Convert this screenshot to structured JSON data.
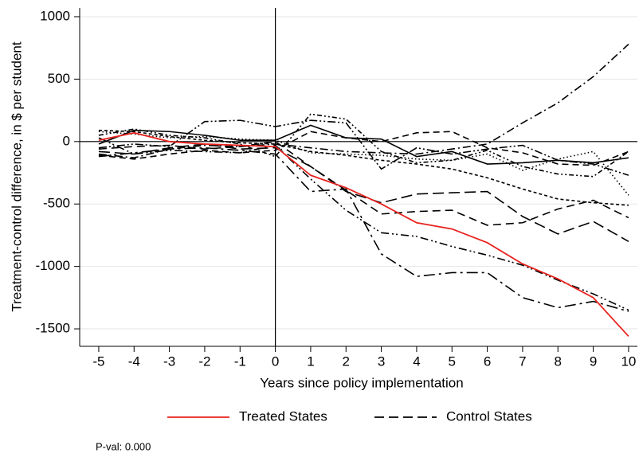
{
  "chart_data": {
    "type": "line",
    "xlabel": "Years since policy implementation",
    "ylabel": "Treatment-control difference, in $ per student",
    "annotation": "P-val: 0.000",
    "x": [
      -5,
      -4,
      -3,
      -2,
      -1,
      0,
      1,
      2,
      3,
      4,
      5,
      6,
      7,
      8,
      9,
      10
    ],
    "xlim": [
      -5.54,
      10.25
    ],
    "ylim": [
      -1640,
      1070
    ],
    "xticks": [
      -5,
      -4,
      -3,
      -2,
      -1,
      0,
      1,
      2,
      3,
      4,
      5,
      6,
      7,
      8,
      9,
      10
    ],
    "yticks": [
      -1500,
      -1000,
      -500,
      0,
      500,
      1000
    ],
    "grid": true,
    "reference_x": 0,
    "reference_y": 0,
    "series": [
      {
        "name": "Treated States",
        "color": "#e8231e",
        "values": [
          10,
          70,
          0,
          -20,
          -30,
          -40,
          -270,
          -370,
          -500,
          -650,
          -700,
          -810,
          -980,
          -1100,
          -1250,
          -1560
        ]
      },
      {
        "name": "Control States",
        "color": "#000000",
        "lines": [
          [
            -100,
            -130,
            -60,
            -30,
            -40,
            -20,
            -50,
            -80,
            -90,
            -100,
            -60,
            -20,
            150,
            310,
            520,
            780
          ],
          [
            -120,
            -90,
            -60,
            -50,
            -70,
            -100,
            -400,
            -380,
            -900,
            -1080,
            -1050,
            -1050,
            -1250,
            -1330,
            -1280,
            -1360
          ],
          [
            30,
            -100,
            -70,
            -80,
            -90,
            -30,
            -300,
            -550,
            -730,
            -760,
            -840,
            -910,
            -990,
            -1110,
            -1220,
            -1350
          ],
          [
            -60,
            -40,
            -30,
            -60,
            -40,
            0,
            -200,
            -390,
            -580,
            -560,
            -550,
            -670,
            -650,
            -540,
            -470,
            -610
          ],
          [
            -80,
            -100,
            -50,
            -20,
            -60,
            -50,
            -200,
            -400,
            -490,
            -420,
            -410,
            -400,
            -600,
            -740,
            -640,
            -800
          ],
          [
            90,
            80,
            40,
            10,
            -10,
            -20,
            -80,
            -110,
            -150,
            -180,
            -220,
            -290,
            -380,
            -460,
            -490,
            -510
          ],
          [
            80,
            60,
            30,
            40,
            20,
            10,
            -90,
            -100,
            -110,
            -140,
            -150,
            -100,
            -230,
            -140,
            -80,
            -430
          ],
          [
            -20,
            90,
            80,
            50,
            10,
            10,
            130,
            30,
            20,
            -120,
            -80,
            -180,
            -170,
            -150,
            -170,
            -130
          ],
          [
            -50,
            -20,
            -40,
            160,
            170,
            120,
            170,
            150,
            -220,
            -50,
            -100,
            -60,
            -30,
            -150,
            -180,
            -270
          ],
          [
            -110,
            -140,
            -100,
            -70,
            -90,
            -70,
            80,
            30,
            0,
            70,
            80,
            -50,
            -90,
            -180,
            -190,
            -80
          ],
          [
            50,
            100,
            50,
            30,
            -20,
            -120,
            220,
            180,
            -80,
            -170,
            -150,
            -70,
            -200,
            -260,
            -280,
            -80
          ]
        ]
      }
    ]
  }
}
